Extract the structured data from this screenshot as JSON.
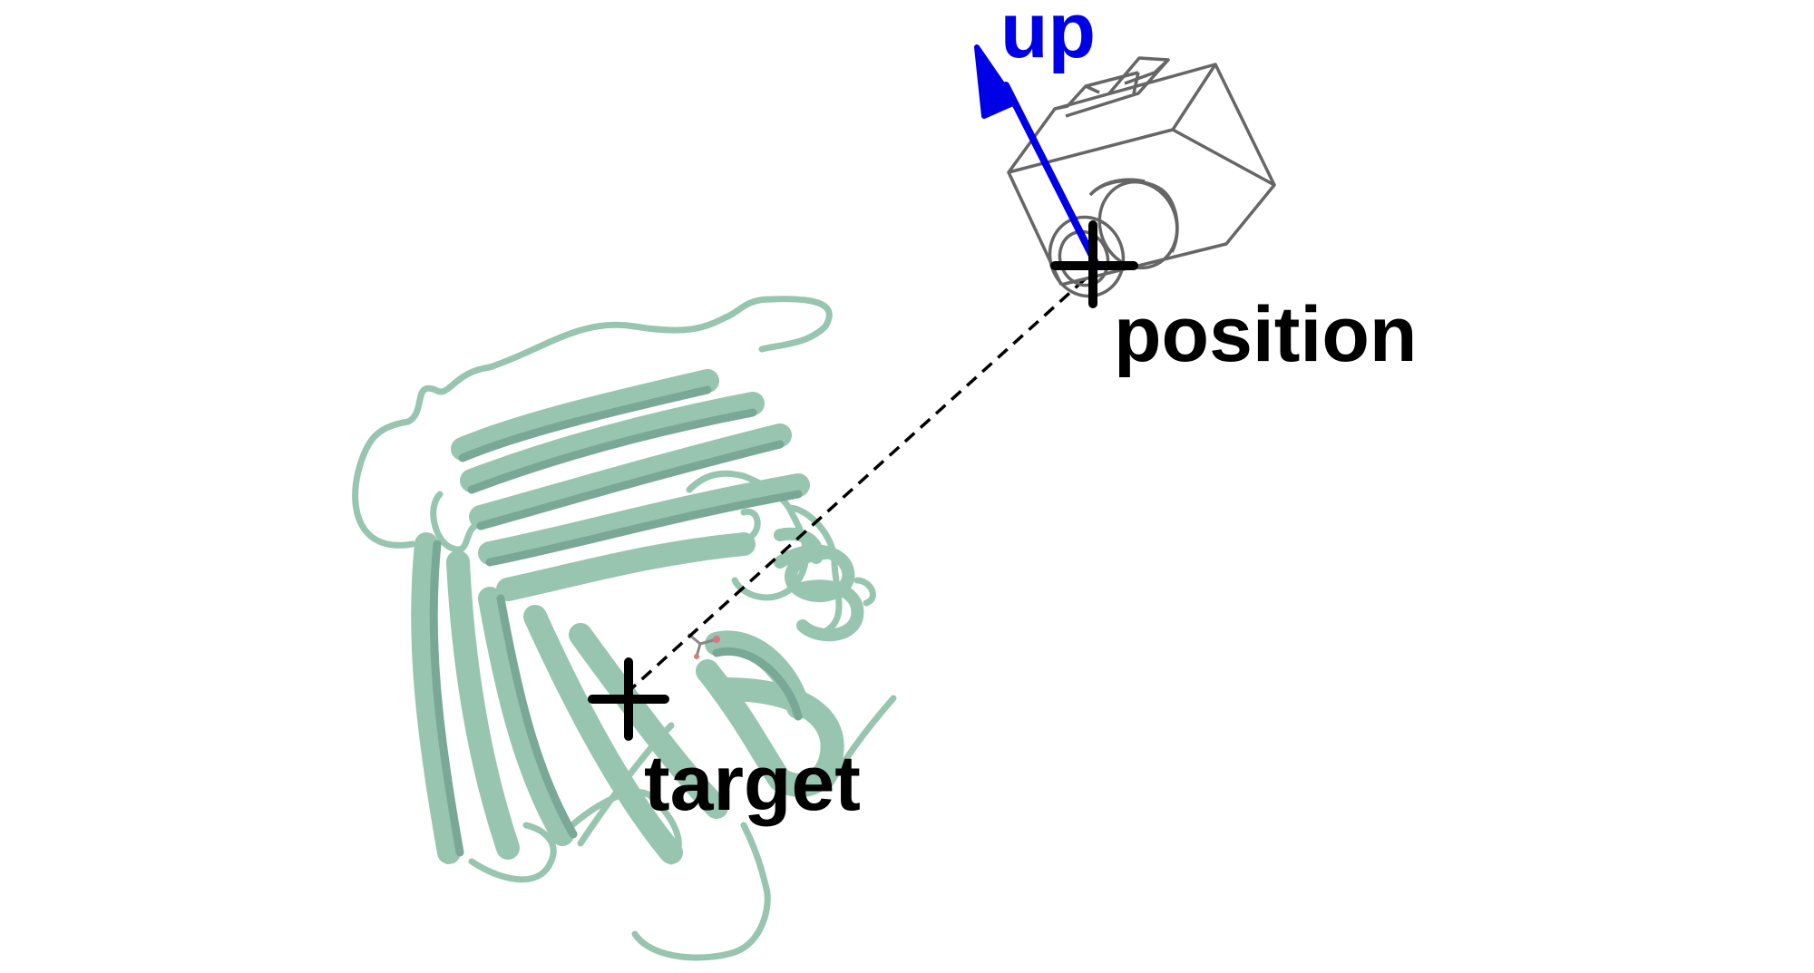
{
  "labels": {
    "up": "up",
    "position": "position",
    "target": "target"
  },
  "icons": {
    "camera": "camera-icon",
    "protein": "protein-ribbon-structure",
    "position_marker": "crosshair-plus",
    "target_marker": "crosshair-plus"
  },
  "colors": {
    "background": "#ffffff",
    "up_vector": "#0000e6",
    "label_text": "#000000",
    "protein_ribbon": "#97c5b0",
    "protein_shade": "#7aa897",
    "camera_outline": "#666666",
    "sight_line": "#000000",
    "marker": "#000000"
  }
}
